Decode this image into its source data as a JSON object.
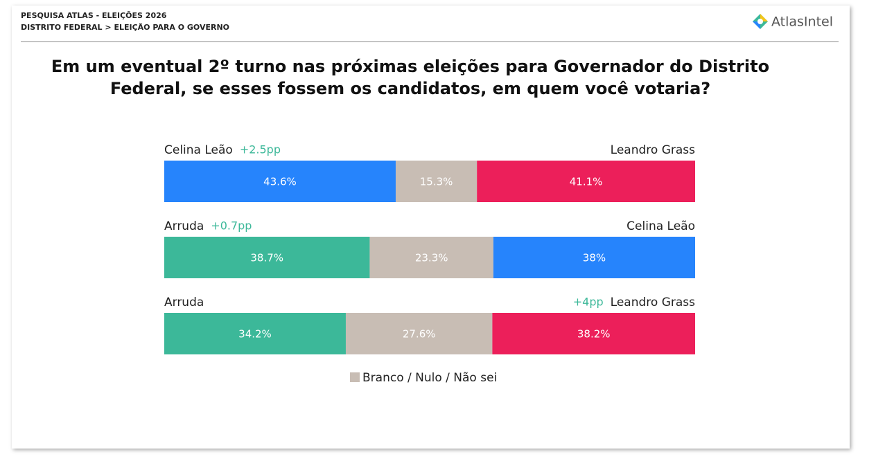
{
  "header": {
    "line1": "PESQUISA ATLAS - ELEIÇÕES 2026",
    "line2": "DISTRITO FEDERAL > ELEIÇÃO PARA O GOVERNO",
    "logo": "AtlasIntel"
  },
  "chart_data": {
    "type": "stacked-bar",
    "title": [
      "Em um eventual 2º turno nas próximas eleições para Governador do Distrito",
      "Federal, se esses fossem os candidatos, em quem você votaria?"
    ],
    "xlim": [
      0,
      100
    ],
    "rows": [
      {
        "left": "Celina Leão",
        "right": "Leandro Grass",
        "lead": "+2.5pp",
        "lead_side": "left",
        "values": [
          43.6,
          15.3,
          41.1
        ],
        "value_labels": [
          "43.6%",
          "15.3%",
          "41.1%"
        ],
        "colors": [
          "#2684fc",
          "#c8bdb4",
          "#ec1f5a"
        ]
      },
      {
        "left": "Arruda",
        "right": "Celina Leão",
        "lead": "+0.7pp",
        "lead_side": "left",
        "values": [
          38.7,
          23.3,
          38
        ],
        "value_labels": [
          "38.7%",
          "23.3%",
          "38%"
        ],
        "colors": [
          "#3cb899",
          "#c8bdb4",
          "#2684fc"
        ]
      },
      {
        "left": "Arruda",
        "right": "Leandro Grass",
        "lead": "+4pp",
        "lead_side": "right",
        "values": [
          34.2,
          27.6,
          38.2
        ],
        "value_labels": [
          "34.2%",
          "27.6%",
          "38.2%"
        ],
        "colors": [
          "#3cb899",
          "#c8bdb4",
          "#ec1f5a"
        ]
      }
    ],
    "legend": {
      "label": "Branco / Nulo / Não sei",
      "color": "#c8bdb4"
    }
  }
}
